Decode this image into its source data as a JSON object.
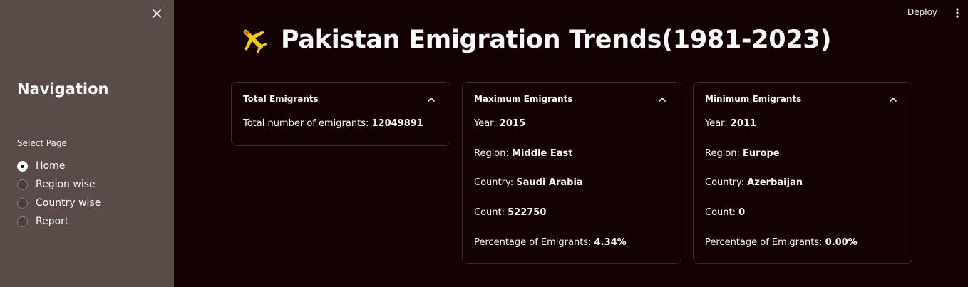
{
  "sidebar": {
    "nav_title": "Navigation",
    "select_label": "Select Page",
    "options": [
      {
        "label": "Home",
        "selected": true
      },
      {
        "label": "Region wise",
        "selected": false
      },
      {
        "label": "Country wise",
        "selected": false
      },
      {
        "label": "Report",
        "selected": false
      }
    ]
  },
  "toolbar": {
    "deploy_label": "Deploy"
  },
  "page": {
    "title": "Pakistan Emigration Trends(1981-2023)",
    "title_icon": "airplane-icon"
  },
  "cards": {
    "total": {
      "header": "Total Emigrants",
      "label": "Total number of emigrants: ",
      "value": "12049891"
    },
    "max": {
      "header": "Maximum Emigrants",
      "year_label": "Year: ",
      "year": "2015",
      "region_label": "Region: ",
      "region": "Middle East",
      "country_label": "Country: ",
      "country": "Saudi Arabia",
      "count_label": "Count: ",
      "count": "522750",
      "pct_label": "Percentage of Emigrants: ",
      "pct": "4.34%"
    },
    "min": {
      "header": "Minimum Emigrants",
      "year_label": "Year: ",
      "year": "2011",
      "region_label": "Region: ",
      "region": "Europe",
      "country_label": "Country: ",
      "country": "Azerbaijan",
      "count_label": "Count: ",
      "count": "0",
      "pct_label": "Percentage of Emigrants: ",
      "pct": "0.00%"
    }
  },
  "colors": {
    "background": "#120002",
    "sidebar": "#5a4a48",
    "card_border": "#3b2d2d",
    "plane_body": "#f2c811",
    "plane_accent": "#e04f2f"
  }
}
